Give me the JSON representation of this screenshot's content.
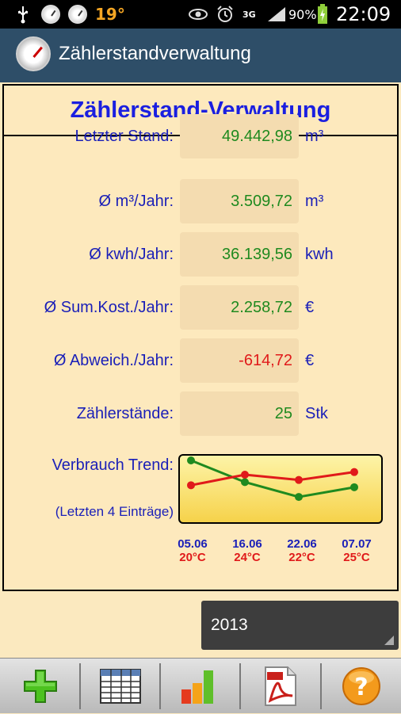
{
  "statusbar": {
    "temperature": "19°",
    "network": "3G",
    "battery": "90%",
    "time": "22:09"
  },
  "actionbar": {
    "title": "Zählerstandverwaltung"
  },
  "panel": {
    "header": "Zählerstand-Verwaltung",
    "rows": [
      {
        "label": "Letzter Stand:",
        "value": "49.442,98",
        "unit": "m³",
        "color": "#1f8a1f"
      },
      {
        "label": "Ø m³/Jahr:",
        "value": "3.509,72",
        "unit": "m³",
        "color": "#1f8a1f"
      },
      {
        "label": "Ø kwh/Jahr:",
        "value": "36.139,56",
        "unit": "kwh",
        "color": "#1f8a1f"
      },
      {
        "label": "Ø Sum.Kost./Jahr:",
        "value": "2.258,72",
        "unit": "€",
        "color": "#1f8a1f"
      },
      {
        "label": "Ø Abweich./Jahr:",
        "value": "-614,72",
        "unit": "€",
        "color": "#e01a1a"
      },
      {
        "label": "Zählerstände:",
        "value": "25",
        "unit": "Stk",
        "color": "#1f8a1f"
      }
    ],
    "trend_label": "Verbrauch Trend:",
    "trend_sub": "(Letzten 4 Einträge)",
    "trend": {
      "dates": [
        "05.06",
        "16.06",
        "22.06",
        "07.07"
      ],
      "temps": [
        "20°C",
        "24°C",
        "22°C",
        "25°C"
      ],
      "temp_values": [
        20,
        24,
        22,
        25
      ],
      "consumption_rel": [
        1.0,
        0.62,
        0.36,
        0.53
      ],
      "temp_color": "#e01a1a",
      "consumption_color": "#1f8a1f"
    }
  },
  "year_select": {
    "value": "2013"
  },
  "toolbar": {
    "buttons": [
      "add-icon",
      "table-icon",
      "chart-icon",
      "pdf-icon",
      "help-icon"
    ]
  }
}
